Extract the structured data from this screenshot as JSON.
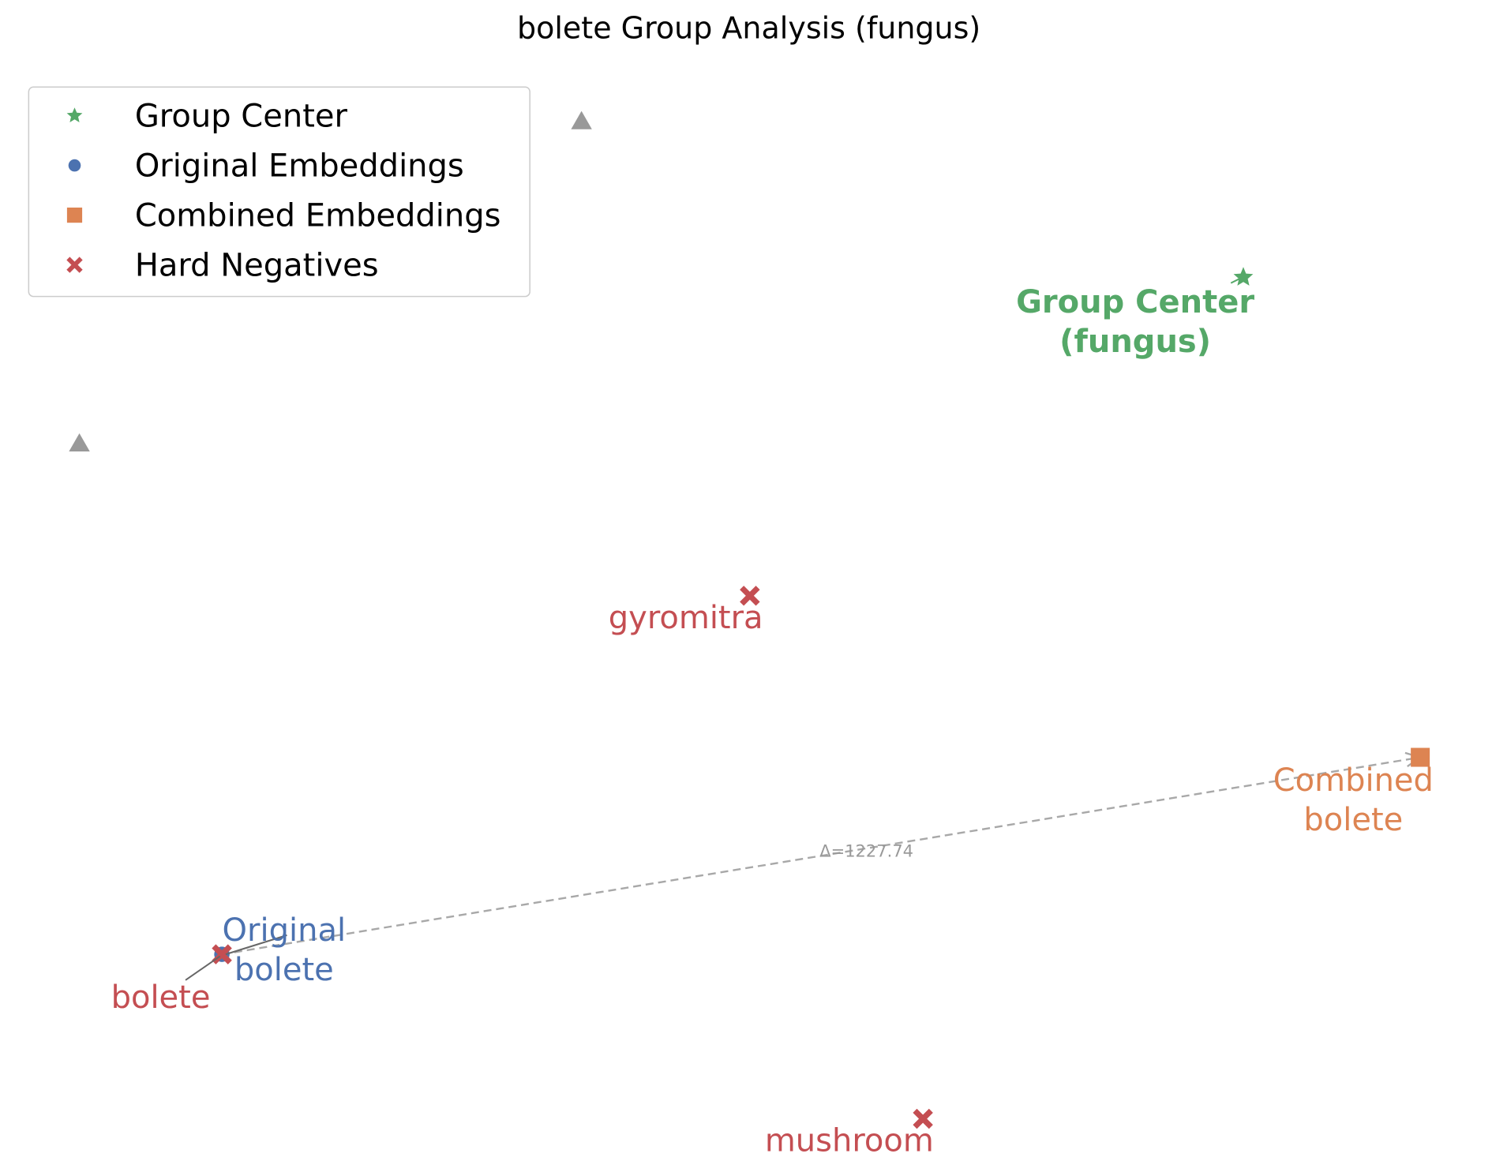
{
  "chart_data": {
    "type": "scatter",
    "title": "bolete Group Analysis (fungus)",
    "xlabel": "",
    "ylabel": "",
    "axes_visible": false,
    "grid": false,
    "legend": {
      "placement": "upper-left",
      "entries": [
        {
          "label": "Group Center",
          "marker": "star",
          "color": "#55a868"
        },
        {
          "label": "Original Embeddings",
          "marker": "circle",
          "color": "#4c72b0"
        },
        {
          "label": "Combined Embeddings",
          "marker": "square",
          "color": "#dd8452"
        },
        {
          "label": "Hard Negatives",
          "marker": "x",
          "color": "#c44e52"
        }
      ]
    },
    "series": [
      {
        "name": "Group Center",
        "marker": "star",
        "color": "#55a868",
        "points": [
          {
            "x": 1300,
            "y": 290,
            "label": "Group Center\n(fungus)"
          }
        ]
      },
      {
        "name": "Original Embeddings",
        "marker": "circle",
        "color": "#4c72b0",
        "points": [
          {
            "x": 232,
            "y": 998,
            "label": "Original\nbolete"
          }
        ]
      },
      {
        "name": "Combined Embeddings",
        "marker": "square",
        "color": "#dd8452",
        "points": [
          {
            "x": 1485,
            "y": 792,
            "label": "Combined\nbolete"
          }
        ]
      },
      {
        "name": "Hard Negatives",
        "marker": "x",
        "color": "#c44e52",
        "points": [
          {
            "x": 232,
            "y": 998,
            "label": "bolete"
          },
          {
            "x": 784,
            "y": 623,
            "label": "gyromitra"
          },
          {
            "x": 965,
            "y": 1170,
            "label": "mushroom"
          }
        ]
      },
      {
        "name": "",
        "marker": "triangle",
        "color": "#999999",
        "points": [
          {
            "x": 608,
            "y": 127
          },
          {
            "x": 83,
            "y": 464
          }
        ]
      }
    ],
    "shift_arrow": {
      "from": [
        232,
        998
      ],
      "to": [
        1485,
        792
      ],
      "label": "Δ=1227.74"
    },
    "xlim": [
      0,
      1560
    ],
    "ylim": [
      0,
      1250
    ]
  }
}
